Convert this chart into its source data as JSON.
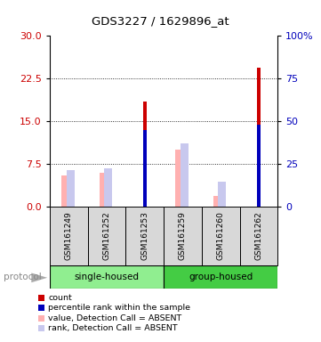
{
  "title": "GDS3227 / 1629896_at",
  "samples": [
    "GSM161249",
    "GSM161252",
    "GSM161253",
    "GSM161259",
    "GSM161260",
    "GSM161262"
  ],
  "red_bar_values": [
    0,
    0,
    18.5,
    0,
    0,
    24.5
  ],
  "blue_bar_values": [
    0,
    0,
    13.5,
    0,
    0,
    14.5
  ],
  "pink_bar_values": [
    5.5,
    6.0,
    0,
    10.0,
    2.0,
    0
  ],
  "lavender_bar_values": [
    6.5,
    6.8,
    0,
    11.2,
    4.5,
    0
  ],
  "ylim_left": [
    0,
    30
  ],
  "ylim_right": [
    0,
    100
  ],
  "yticks_left": [
    0,
    7.5,
    15,
    22.5,
    30
  ],
  "yticks_right": [
    0,
    25,
    50,
    75,
    100
  ],
  "ytick_labels_right": [
    "0",
    "25",
    "50",
    "75",
    "100%"
  ],
  "red_color": "#cc0000",
  "blue_color": "#0000bb",
  "pink_color": "#ffb0b0",
  "lavender_color": "#c8c8ee",
  "group_split": 3,
  "group1_label": "single-housed",
  "group2_label": "group-housed",
  "group1_color": "#90ee90",
  "group2_color": "#44cc44",
  "protocol_label": "protocol",
  "sample_bg_color": "#d8d8d8",
  "plot_bg_color": "#ffffff",
  "legend_items": [
    {
      "color": "#cc0000",
      "label": "count"
    },
    {
      "color": "#0000bb",
      "label": "percentile rank within the sample"
    },
    {
      "color": "#ffb0b0",
      "label": "value, Detection Call = ABSENT"
    },
    {
      "color": "#c8c8ee",
      "label": "rank, Detection Call = ABSENT"
    }
  ]
}
